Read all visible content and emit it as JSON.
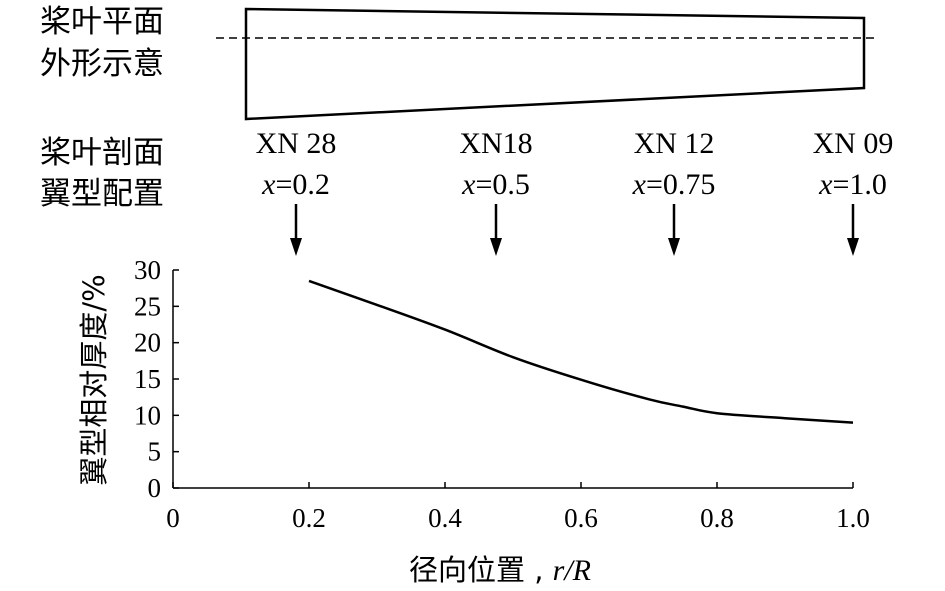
{
  "labels": {
    "planform_1": "桨叶平面",
    "planform_2": "外形示意",
    "section_1": "桨叶剖面",
    "section_2": "翼型配置"
  },
  "sections": [
    {
      "airfoil": "XN 28",
      "x_var": "x",
      "eq": "=0.2",
      "r": 0.2
    },
    {
      "airfoil": "XN18",
      "x_var": "x",
      "eq": "=0.5",
      "r": 0.5
    },
    {
      "airfoil": "XN 12",
      "x_var": "x",
      "eq": "=0.75",
      "r": 0.75
    },
    {
      "airfoil": "XN 09",
      "x_var": "x",
      "eq": "=1.0",
      "r": 1.0
    }
  ],
  "chart_data": {
    "type": "line",
    "ylabel": "翼型相对厚度/%",
    "xlabel_prefix": "径向位置 , ",
    "xlabel_var": "r/R",
    "xlim": [
      0,
      1.0
    ],
    "ylim": [
      0,
      30
    ],
    "xticks": [
      "0",
      "0.2",
      "0.4",
      "0.6",
      "0.8",
      "1.0"
    ],
    "yticks": [
      "0",
      "5",
      "10",
      "15",
      "20",
      "25",
      "30"
    ],
    "series": [
      {
        "x": [
          0.2,
          0.3,
          0.4,
          0.5,
          0.6,
          0.7,
          0.75,
          0.8,
          0.9,
          1.0
        ],
        "y": [
          28.5,
          25.2,
          21.8,
          18.0,
          14.9,
          12.2,
          11.2,
          10.3,
          9.6,
          9.0
        ]
      }
    ]
  }
}
